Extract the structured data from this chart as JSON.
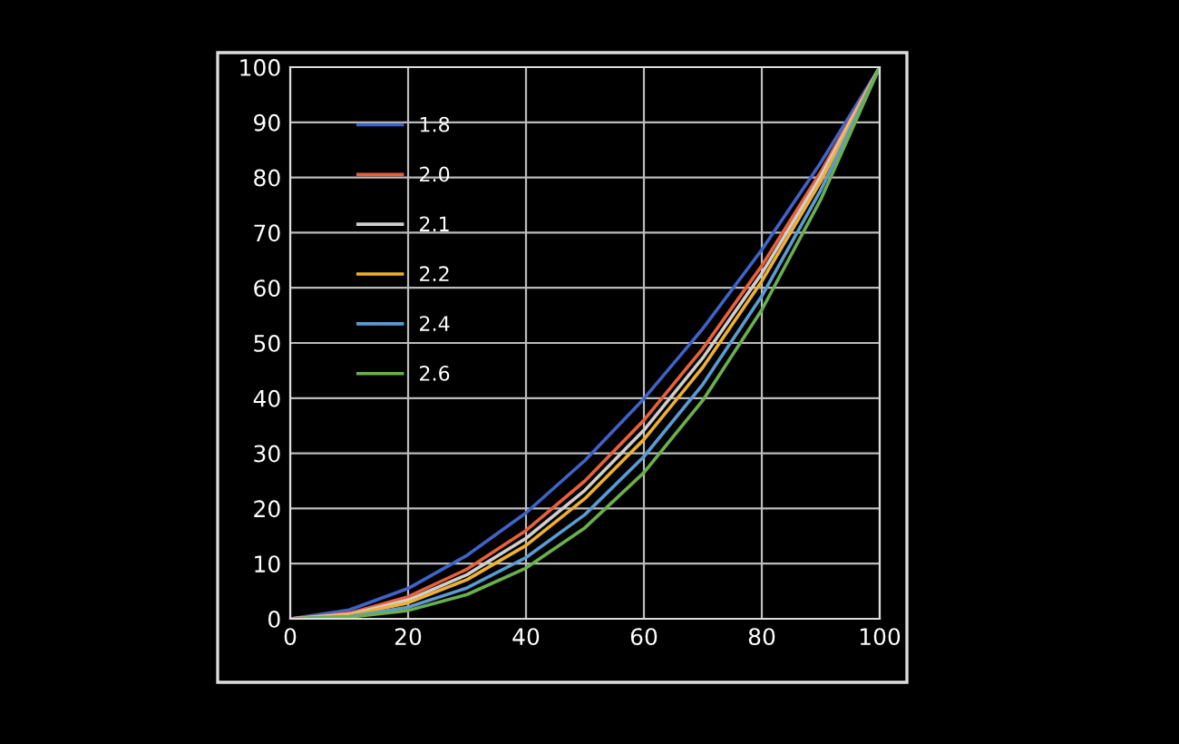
{
  "chart_data": {
    "type": "line",
    "x": [
      0,
      10,
      20,
      30,
      40,
      50,
      60,
      70,
      80,
      90,
      100
    ],
    "series": [
      {
        "name": "1.8",
        "color": "#3f63c8",
        "values": [
          0,
          1.6,
          5.5,
          11.5,
          19.2,
          28.7,
          39.9,
          52.6,
          66.9,
          82.7,
          100
        ]
      },
      {
        "name": "2.0",
        "color": "#e8603c",
        "values": [
          0,
          1.0,
          4.0,
          9.0,
          16.0,
          25.0,
          36.0,
          49.0,
          64.0,
          81.0,
          100
        ]
      },
      {
        "name": "2.1",
        "color": "#cfcfcf",
        "values": [
          0,
          0.8,
          3.4,
          8.0,
          14.6,
          23.3,
          34.2,
          47.3,
          62.6,
          80.2,
          100
        ]
      },
      {
        "name": "2.2",
        "color": "#f0b030",
        "values": [
          0,
          0.6,
          2.9,
          7.1,
          13.3,
          21.8,
          32.5,
          45.6,
          61.2,
          79.3,
          100
        ]
      },
      {
        "name": "2.4",
        "color": "#5b9bd5",
        "values": [
          0,
          0.4,
          2.1,
          5.6,
          11.1,
          18.9,
          29.4,
          42.5,
          58.5,
          77.7,
          100
        ]
      },
      {
        "name": "2.6",
        "color": "#6ab04c",
        "values": [
          0,
          0.3,
          1.5,
          4.4,
          9.2,
          16.5,
          26.5,
          39.6,
          56.0,
          76.0,
          100
        ]
      }
    ],
    "xlim": [
      0,
      100
    ],
    "xticks": [
      0,
      20,
      40,
      60,
      80,
      100
    ],
    "ylim": [
      0,
      100
    ],
    "yticks": [
      0,
      10,
      20,
      30,
      40,
      50,
      60,
      70,
      80,
      90,
      100
    ],
    "grid": true,
    "legend": "top left",
    "marker": "none",
    "line_style": "solid"
  }
}
